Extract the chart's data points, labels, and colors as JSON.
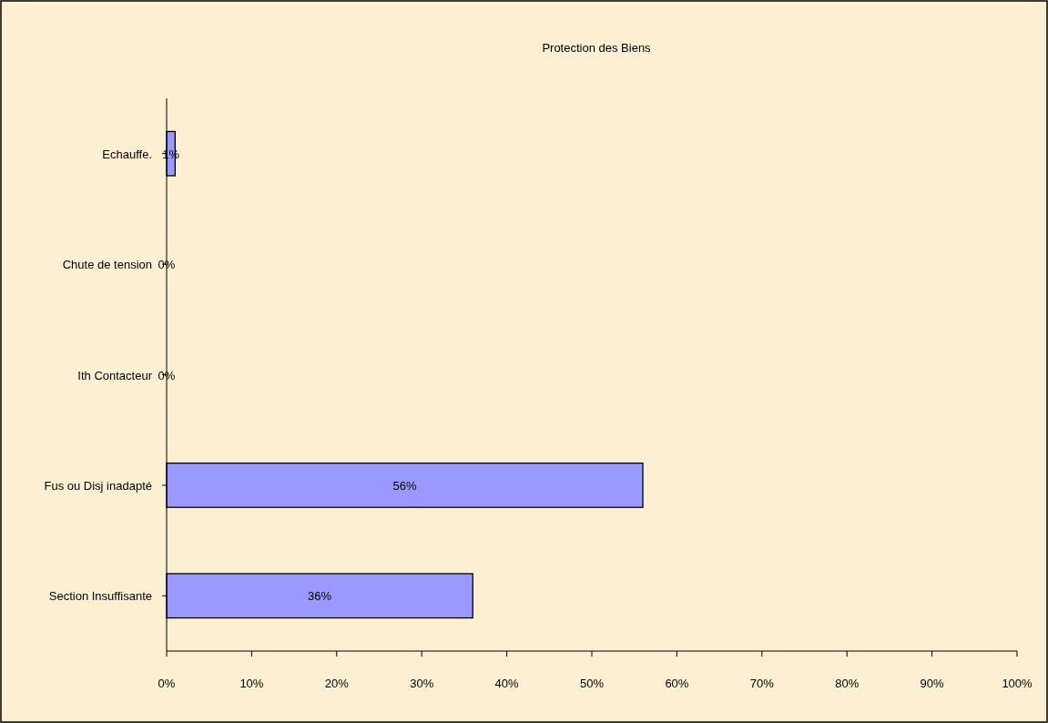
{
  "chart_data": {
    "type": "bar",
    "orientation": "horizontal",
    "title": "Protection des Biens",
    "categories": [
      "Echauffe.",
      "Chute de tension",
      "Ith Contacteur",
      "Fus ou Disj inadapté",
      "Section Insuffisante"
    ],
    "values": [
      1,
      0,
      0,
      56,
      36
    ],
    "value_labels": [
      "1%",
      "0%",
      "0%",
      "56%",
      "36%"
    ],
    "color": "#9999ff",
    "xlim": [
      0,
      100
    ],
    "xticks": [
      {
        "value": 0,
        "label": "0%"
      },
      {
        "value": 10,
        "label": "10%"
      },
      {
        "value": 20,
        "label": "20%"
      },
      {
        "value": 30,
        "label": "30%"
      },
      {
        "value": 40,
        "label": "40%"
      },
      {
        "value": 50,
        "label": "50%"
      },
      {
        "value": 60,
        "label": "60%"
      },
      {
        "value": 70,
        "label": "70%"
      },
      {
        "value": 80,
        "label": "80%"
      },
      {
        "value": 90,
        "label": "90%"
      },
      {
        "value": 100,
        "label": "100%"
      }
    ]
  }
}
